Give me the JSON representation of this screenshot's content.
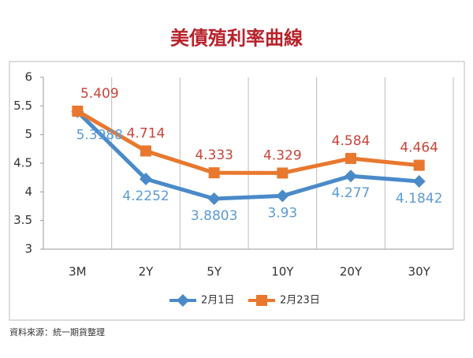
{
  "chart_data": {
    "type": "line",
    "title": "美債殖利率曲線",
    "categories": [
      "3M",
      "2Y",
      "5Y",
      "10Y",
      "20Y",
      "30Y"
    ],
    "series": [
      {
        "name": "2月1日",
        "color": "#4a8ac9",
        "label_color": "#5b9bd5",
        "marker": "diamond",
        "label_position": "below",
        "values": [
          5.3988,
          4.2252,
          3.8803,
          3.93,
          4.277,
          4.1842
        ]
      },
      {
        "name": "2月23日",
        "color": "#e8782e",
        "label_color": "#c8443a",
        "marker": "square",
        "label_position": "above",
        "values": [
          5.409,
          4.714,
          4.333,
          4.329,
          4.584,
          4.464
        ]
      }
    ],
    "ylim": [
      3,
      6
    ],
    "yticks": [
      3,
      3.5,
      4,
      4.5,
      5,
      5.5,
      6
    ],
    "legend": "bottom",
    "source": "資料來源：統一期貨整理"
  }
}
